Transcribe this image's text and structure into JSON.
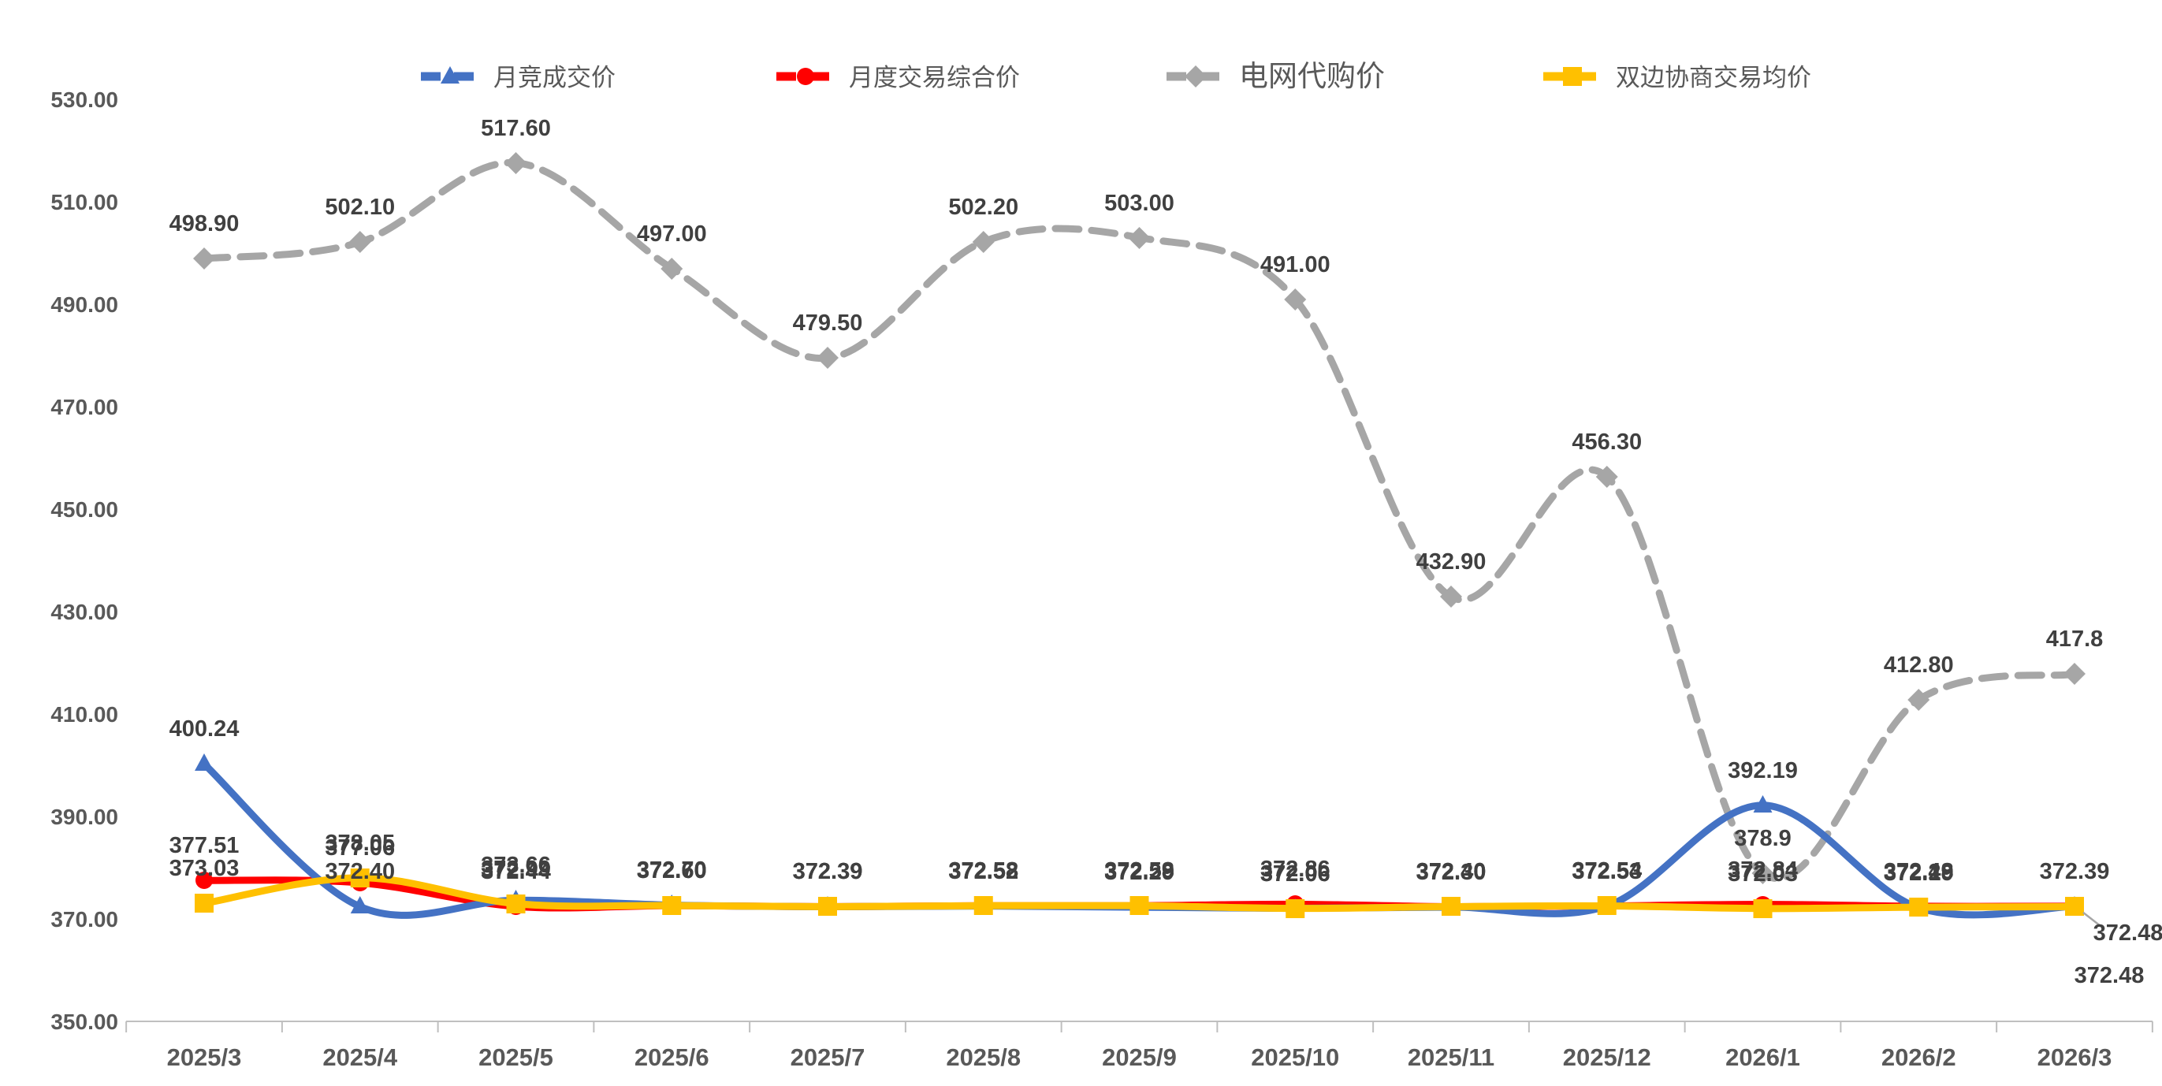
{
  "chart_data": {
    "type": "line",
    "title": "",
    "categories": [
      "2025/3",
      "2025/4",
      "2025/5",
      "2025/6",
      "2025/7",
      "2025/8",
      "2025/9",
      "2025/10",
      "2025/11",
      "2025/12",
      "2026/1",
      "2026/2",
      "2026/3"
    ],
    "series": [
      {
        "name": "月竞成交价",
        "color": "#4472C4",
        "marker": "triangle",
        "dash": "solid",
        "values": [
          400.24,
          372.4,
          373.66,
          372.7,
          372.39,
          372.52,
          372.29,
          372.06,
          372.3,
          372.53,
          392.19,
          372.19,
          372.48
        ],
        "labels": [
          "400.24",
          "372.40",
          "373.66",
          "372.70",
          "372.39",
          "372.52",
          "372.29",
          "372.06",
          "372.30",
          "372.53",
          "392.19",
          "372.19",
          "372.48"
        ],
        "label_overrides": {
          "12": {
            "dx": 44,
            "dy": 87
          }
        }
      },
      {
        "name": "月度交易综合价",
        "color": "#FF0000",
        "marker": "circle",
        "dash": "solid",
        "values": [
          377.51,
          377.06,
          372.44,
          372.6,
          372.39,
          372.58,
          372.59,
          372.86,
          372.4,
          372.54,
          372.84,
          372.48,
          372.48
        ],
        "labels": [
          "377.51",
          "377.06",
          "372.44",
          "372.60",
          "372.39",
          "372.58",
          "372.59",
          "372.86",
          "372.40",
          "372.54",
          "372.84",
          "372.48",
          "372.48"
        ],
        "label_overrides": {
          "12": {
            "dx": 68,
            "dy": 33,
            "leader": [
              11,
              8,
              38,
              29
            ]
          }
        }
      },
      {
        "name": "电网代购价",
        "color": "#A6A6A6",
        "marker": "diamond",
        "dash": "dashed",
        "values": [
          498.9,
          502.1,
          517.6,
          497.0,
          479.5,
          502.2,
          503.0,
          491.0,
          432.9,
          456.3,
          378.9,
          412.8,
          417.8
        ],
        "labels": [
          "498.90",
          "502.10",
          "517.60",
          "497.00",
          "479.50",
          "502.20",
          "503.00",
          "491.00",
          "432.90",
          "456.30",
          "378.9",
          "412.80",
          "417.8"
        ],
        "label_overrides": {}
      },
      {
        "name": "双边协商交易均价",
        "color": "#FFC000",
        "marker": "square",
        "dash": "solid",
        "values": [
          373.03,
          378.05,
          372.99,
          372.6,
          372.39,
          372.58,
          372.58,
          372.06,
          372.4,
          372.54,
          372.03,
          372.29,
          372.39
        ],
        "labels": [
          "373.03",
          "378.05",
          "372.99",
          "372.60",
          "372.39",
          "372.58",
          "372.58",
          "372.06",
          "372.40",
          "372.54",
          "372.03",
          "372.29",
          "372.39"
        ],
        "label_overrides": {}
      }
    ],
    "y_axis": {
      "min": 350,
      "max": 530,
      "step": 20,
      "tick_labels": [
        "350.00",
        "370.00",
        "390.00",
        "410.00",
        "430.00",
        "450.00",
        "470.00",
        "490.00",
        "510.00",
        "530.00"
      ]
    },
    "x_axis_label": "",
    "y_axis_label": "",
    "legend_position": "top",
    "gridlines": false,
    "colors": {
      "axis_text": "#595959",
      "data_label_text": "#404040",
      "axis_line": "#BFBFBF",
      "legend_text": "#595959",
      "leader_line": "#A6A6A6"
    }
  }
}
